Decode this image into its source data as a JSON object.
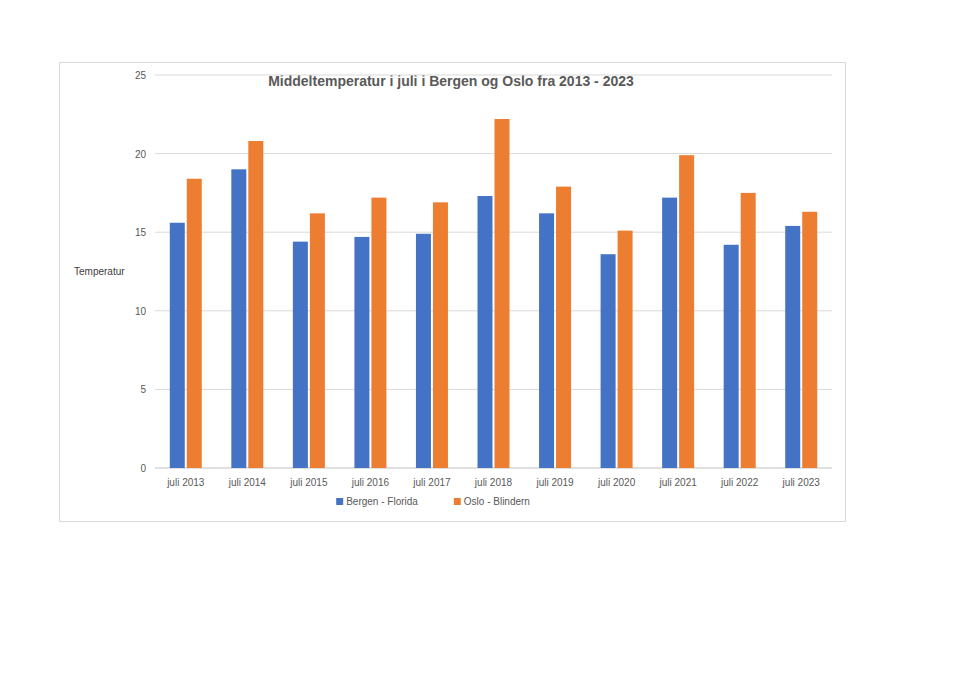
{
  "chart_data": {
    "type": "bar",
    "title": "Middeltemperatur i juli i Bergen og Oslo fra 2013 - 2023",
    "y_label": "Temperatur",
    "categories": [
      "juli 2013",
      "juli 2014",
      "juli 2015",
      "juli 2016",
      "juli 2017",
      "juli 2018",
      "juli 2019",
      "juli 2020",
      "juli 2021",
      "juli 2022",
      "juli 2023"
    ],
    "series": [
      {
        "name": "Bergen - Florida",
        "color": "#4472c4",
        "values": [
          15.6,
          19.0,
          14.4,
          14.7,
          14.9,
          17.3,
          16.2,
          13.6,
          17.2,
          14.2,
          15.4
        ]
      },
      {
        "name": "Oslo - Blindern",
        "color": "#ed7d31",
        "values": [
          18.4,
          20.8,
          16.2,
          17.2,
          16.9,
          22.2,
          17.9,
          15.1,
          19.9,
          17.5,
          16.3
        ]
      }
    ],
    "ylim": [
      0,
      25
    ],
    "yticks": [
      0,
      5,
      10,
      15,
      20,
      25
    ],
    "grid": true,
    "legend": "bottom"
  }
}
